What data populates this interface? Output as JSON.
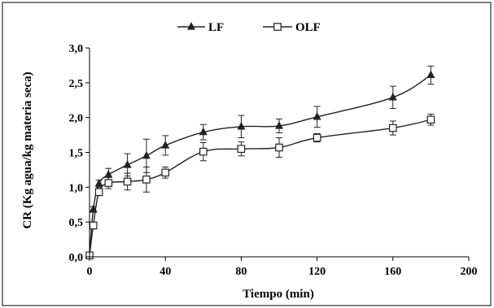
{
  "chart_data": {
    "type": "line",
    "xlabel": "Tiempo (min)",
    "ylabel": "CR (Kg agua/kg materia seca)",
    "xlim": [
      0,
      200
    ],
    "ylim": [
      0,
      3.0
    ],
    "x_ticks": [
      0,
      40,
      80,
      120,
      160,
      200
    ],
    "x_tick_labels": [
      "0",
      "40",
      "80",
      "120",
      "160",
      "200"
    ],
    "y_ticks": [
      0,
      0.5,
      1.0,
      1.5,
      2.0,
      2.5,
      3.0
    ],
    "y_tick_labels": [
      "0,0",
      "0,5",
      "1,0",
      "1,5",
      "2,0",
      "2,5",
      "3,0"
    ],
    "grid": false,
    "legend_position": "top-center",
    "series": [
      {
        "name": "LF",
        "marker": "filled-triangle",
        "color": "#222222",
        "x": [
          0,
          2,
          5,
          10,
          20,
          30,
          40,
          60,
          80,
          100,
          120,
          160,
          180
        ],
        "y": [
          0.02,
          0.68,
          1.05,
          1.18,
          1.32,
          1.45,
          1.6,
          1.79,
          1.87,
          1.88,
          2.01,
          2.29,
          2.61
        ],
        "err": [
          0.0,
          0.04,
          0.05,
          0.09,
          0.16,
          0.24,
          0.14,
          0.11,
          0.16,
          0.1,
          0.15,
          0.16,
          0.13
        ]
      },
      {
        "name": "OLF",
        "marker": "open-square",
        "color": "#222222",
        "x": [
          0,
          2,
          5,
          10,
          20,
          30,
          40,
          60,
          80,
          100,
          120,
          160,
          180
        ],
        "y": [
          0.02,
          0.45,
          0.93,
          1.06,
          1.08,
          1.11,
          1.21,
          1.51,
          1.55,
          1.57,
          1.71,
          1.85,
          1.97
        ],
        "err": [
          0.0,
          0.04,
          0.05,
          0.08,
          0.12,
          0.18,
          0.08,
          0.13,
          0.1,
          0.14,
          0.06,
          0.1,
          0.08
        ]
      }
    ]
  }
}
